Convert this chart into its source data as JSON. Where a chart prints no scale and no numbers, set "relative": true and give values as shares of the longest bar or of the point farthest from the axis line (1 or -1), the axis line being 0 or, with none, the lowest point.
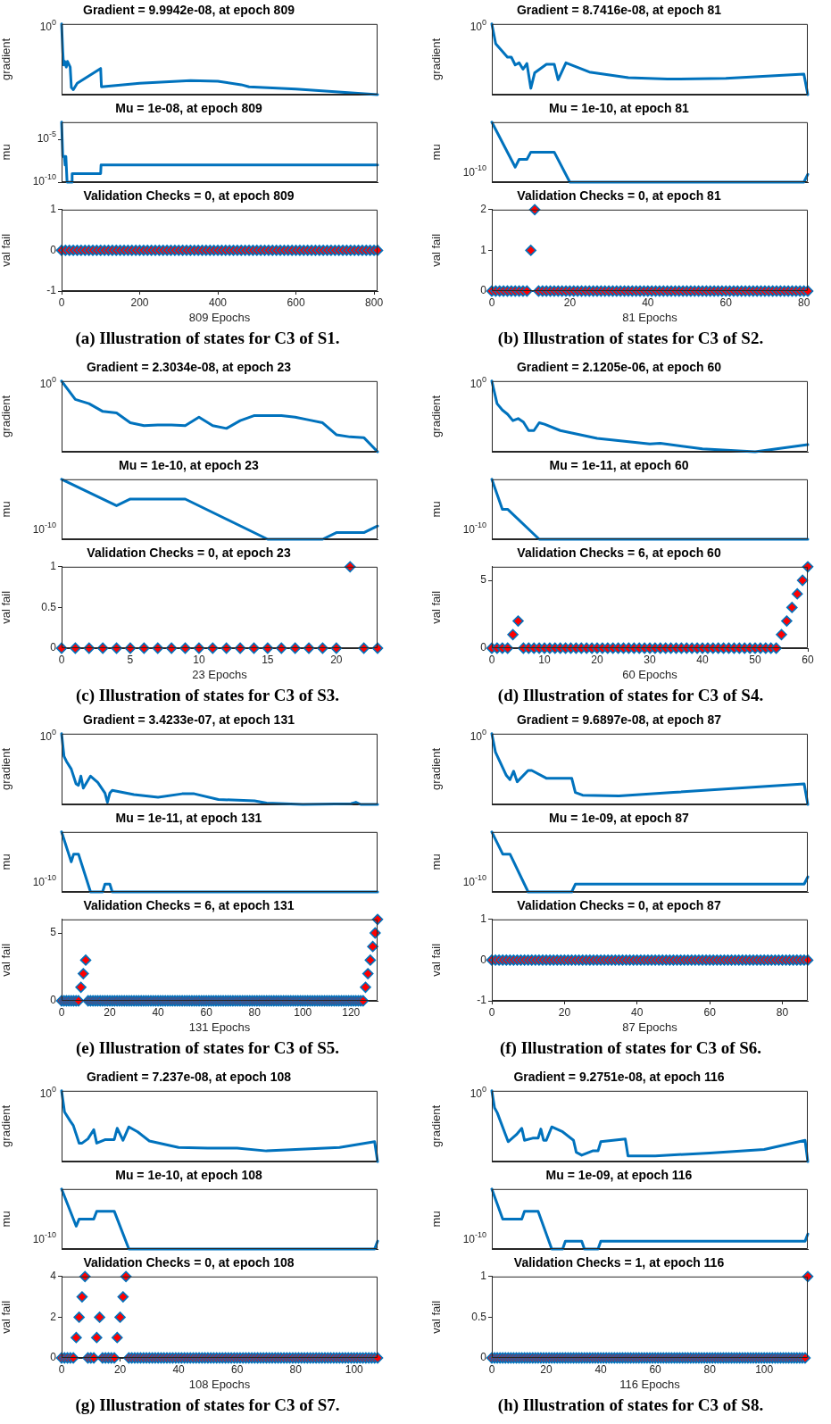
{
  "chart_data": [
    {
      "type": "line",
      "title": "Gradient = 9.9942e-08, at epoch 809",
      "ylabel": "gradient",
      "color": "#0072bd",
      "relative": true,
      "tick_labels": "y",
      "xlim": [
        0,
        809
      ],
      "xticks": [
        0,
        200,
        400,
        600,
        800
      ],
      "annotations": [
        "10$^{0}$"
      ],
      "x": [
        0,
        3,
        5,
        8,
        12,
        15,
        22,
        25,
        30,
        40,
        100,
        102,
        200,
        330,
        400,
        460,
        480,
        600,
        809
      ],
      "values": [
        1,
        0.61,
        0.42,
        0.47,
        0.39,
        0.47,
        0.39,
        0.1,
        0.07,
        0.16,
        0.37,
        0.11,
        0.16,
        0.2,
        0.19,
        0.14,
        0.11,
        0.08,
        0
      ]
    },
    {
      "type": "line",
      "title": "Mu = 1e-08, at epoch 809",
      "ylabel": "mu",
      "color": "#0072bd",
      "log": true,
      "tick_labels": "y",
      "xlim": [
        0,
        809
      ],
      "xticks": [
        0,
        200,
        400,
        600,
        800
      ],
      "ylim": [
        1e-10,
        0.001
      ],
      "yticks": [
        {
          "value": 1e-05,
          "label": "10$^{-5}$"
        },
        {
          "value": 1e-10,
          "label": "10$^{-10}$"
        }
      ],
      "x": [
        0,
        3,
        7,
        9,
        11,
        14,
        26,
        27,
        100,
        101,
        809
      ],
      "values": [
        0.001,
        1e-07,
        1e-07,
        1e-08,
        1e-07,
        1e-10,
        1e-10,
        1e-09,
        1e-09,
        1e-08,
        1e-08
      ]
    },
    {
      "type": "scatter",
      "title": "Validation Checks = 0, at epoch 809",
      "ylabel": "val fail",
      "xlabel": "809 Epochs",
      "color": "#0072bd",
      "marker": "diamond",
      "xlim": [
        0,
        809
      ],
      "xticks": [
        0,
        200,
        400,
        600,
        800
      ],
      "ylim": [
        -1,
        1
      ],
      "yticks": [
        -1,
        0,
        1
      ],
      "annotations": [
        "(a) Illustration of states for C3 of S1."
      ],
      "x": [
        0,
        10,
        20,
        30,
        40,
        50,
        60,
        70,
        80,
        90,
        100,
        110,
        120,
        130,
        140,
        150,
        160,
        170,
        180,
        190,
        200,
        210,
        220,
        230,
        240,
        250,
        260,
        270,
        280,
        290,
        300,
        310,
        320,
        330,
        340,
        350,
        360,
        370,
        380,
        390,
        400,
        410,
        420,
        430,
        440,
        450,
        460,
        470,
        480,
        490,
        500,
        510,
        520,
        530,
        540,
        550,
        560,
        570,
        580,
        590,
        600,
        610,
        620,
        630,
        640,
        650,
        660,
        670,
        680,
        690,
        700,
        710,
        720,
        730,
        740,
        750,
        760,
        770,
        780,
        790,
        800,
        809
      ],
      "values": [
        0,
        0,
        0,
        0,
        0,
        0,
        0,
        0,
        0,
        0,
        0,
        0,
        0,
        0,
        0,
        0,
        0,
        0,
        0,
        0,
        0,
        0,
        0,
        0,
        0,
        0,
        0,
        0,
        0,
        0,
        0,
        0,
        0,
        0,
        0,
        0,
        0,
        0,
        0,
        0,
        0,
        0,
        0,
        0,
        0,
        0,
        0,
        0,
        0,
        0,
        0,
        0,
        0,
        0,
        0,
        0,
        0,
        0,
        0,
        0,
        0,
        0,
        0,
        0,
        0,
        0,
        0,
        0,
        0,
        0,
        0,
        0,
        0,
        0,
        0,
        0,
        0,
        0,
        0,
        0,
        0,
        0
      ]
    },
    {
      "type": "line",
      "title": "Gradient = 8.7416e-08, at epoch 81",
      "ylabel": "gradient",
      "color": "#0072bd",
      "relative": true,
      "tick_labels": "y",
      "xlim": [
        0,
        81
      ],
      "xticks": [
        0,
        20,
        40,
        60,
        80
      ],
      "annotations": [
        "10$^{0}$"
      ],
      "x": [
        0,
        1,
        4,
        5,
        6,
        7,
        8,
        9,
        10,
        11,
        14,
        16,
        17,
        19,
        25,
        35,
        45,
        60,
        80,
        81
      ],
      "values": [
        1,
        0.72,
        0.53,
        0.53,
        0.42,
        0.45,
        0.36,
        0.44,
        0.09,
        0.31,
        0.43,
        0.43,
        0.21,
        0.45,
        0.32,
        0.24,
        0.22,
        0.23,
        0.29,
        0
      ]
    },
    {
      "type": "line",
      "title": "Mu = 1e-10, at epoch 81",
      "ylabel": "mu",
      "color": "#0072bd",
      "relative": true,
      "tick_labels": "y",
      "xlim": [
        0,
        81
      ],
      "xticks": [
        0,
        20,
        40,
        60,
        80
      ],
      "annotations": [
        "10$^{-10}$"
      ],
      "x": [
        0,
        6,
        7,
        9,
        10,
        16,
        20,
        80,
        81
      ],
      "values": [
        1,
        0.25,
        0.38,
        0.38,
        0.5,
        0.5,
        0,
        0,
        0.13
      ]
    },
    {
      "type": "scatter",
      "title": "Validation Checks = 0, at epoch 81",
      "ylabel": "val fail",
      "xlabel": "81 Epochs",
      "color": "#0072bd",
      "marker": "diamond",
      "xlim": [
        0,
        81
      ],
      "xticks": [
        0,
        20,
        40,
        60,
        80
      ],
      "ylim": [
        0,
        2
      ],
      "yticks": [
        0,
        1,
        2
      ],
      "annotations": [
        "(b) Illustration of states for C3 of S2."
      ],
      "x": [
        0,
        1,
        2,
        3,
        4,
        5,
        6,
        7,
        8,
        9,
        10,
        11,
        12,
        13,
        14,
        15,
        16,
        17,
        18,
        19,
        20,
        21,
        22,
        23,
        24,
        25,
        26,
        27,
        28,
        29,
        30,
        31,
        32,
        33,
        34,
        35,
        36,
        37,
        38,
        39,
        40,
        41,
        42,
        43,
        44,
        45,
        46,
        47,
        48,
        49,
        50,
        51,
        52,
        53,
        54,
        55,
        56,
        57,
        58,
        59,
        60,
        61,
        62,
        63,
        64,
        65,
        66,
        67,
        68,
        69,
        70,
        71,
        72,
        73,
        74,
        75,
        76,
        77,
        78,
        79,
        80,
        81
      ],
      "values": [
        0,
        0,
        0,
        0,
        0,
        0,
        0,
        0,
        0,
        0,
        1,
        2,
        0,
        0,
        0,
        0,
        0,
        0,
        0,
        0,
        0,
        0,
        0,
        0,
        0,
        0,
        0,
        0,
        0,
        0,
        0,
        0,
        0,
        0,
        0,
        0,
        0,
        0,
        0,
        0,
        0,
        0,
        0,
        0,
        0,
        0,
        0,
        0,
        0,
        0,
        0,
        0,
        0,
        0,
        0,
        0,
        0,
        0,
        0,
        0,
        0,
        0,
        0,
        0,
        0,
        0,
        0,
        0,
        0,
        0,
        0,
        0,
        0,
        0,
        0,
        0,
        0,
        0,
        0,
        0,
        0,
        0
      ]
    },
    {
      "type": "line",
      "title": "Gradient = 2.3034e-08, at epoch 23",
      "ylabel": "gradient",
      "color": "#0072bd",
      "relative": true,
      "tick_labels": "y",
      "xlim": [
        0,
        23
      ],
      "xticks": [
        0,
        5,
        10,
        15,
        20
      ],
      "annotations": [
        "10$^{0}$"
      ],
      "x": [
        0,
        1,
        2,
        3,
        4,
        5,
        6,
        7,
        8,
        9,
        10,
        11,
        12,
        13,
        14,
        15,
        16,
        17,
        18,
        19,
        20,
        21,
        22,
        23
      ],
      "values": [
        1,
        0.74,
        0.68,
        0.57,
        0.55,
        0.41,
        0.37,
        0.38,
        0.38,
        0.37,
        0.49,
        0.37,
        0.33,
        0.44,
        0.51,
        0.51,
        0.51,
        0.49,
        0.45,
        0.41,
        0.24,
        0.21,
        0.2,
        0
      ]
    },
    {
      "type": "line",
      "title": "Mu = 1e-10, at epoch 23",
      "ylabel": "mu",
      "color": "#0072bd",
      "relative": true,
      "tick_labels": "y",
      "xlim": [
        0,
        23
      ],
      "xticks": [
        0,
        5,
        10,
        15,
        20
      ],
      "annotations": [
        "10$^{-10}$"
      ],
      "x": [
        0,
        4,
        5,
        9,
        15,
        19,
        20,
        22,
        23
      ],
      "values": [
        1,
        0.56,
        0.67,
        0.67,
        0,
        0,
        0.11,
        0.11,
        0.22
      ]
    },
    {
      "type": "scatter",
      "title": "Validation Checks = 0, at epoch 23",
      "ylabel": "val fail",
      "xlabel": "23 Epochs",
      "color": "#0072bd",
      "marker": "diamond",
      "xlim": [
        0,
        23
      ],
      "xticks": [
        0,
        5,
        10,
        15,
        20
      ],
      "ylim": [
        0,
        1
      ],
      "yticks": [
        0,
        0.5,
        1
      ],
      "annotations": [
        "(c) Illustration of states for C3 of S3."
      ],
      "x": [
        0,
        1,
        2,
        3,
        4,
        5,
        6,
        7,
        8,
        9,
        10,
        11,
        12,
        13,
        14,
        15,
        16,
        17,
        18,
        19,
        20,
        21,
        22,
        23
      ],
      "values": [
        0,
        0,
        0,
        0,
        0,
        0,
        0,
        0,
        0,
        0,
        0,
        0,
        0,
        0,
        0,
        0,
        0,
        0,
        0,
        0,
        0,
        1,
        0,
        0
      ]
    },
    {
      "type": "line",
      "title": "Gradient = 2.1205e-06, at epoch 60",
      "ylabel": "gradient",
      "color": "#0072bd",
      "relative": true,
      "tick_labels": "y",
      "xlim": [
        0,
        60
      ],
      "xticks": [
        0,
        10,
        20,
        30,
        40,
        50,
        60
      ],
      "annotations": [
        "10$^{0}$"
      ],
      "x": [
        0,
        1,
        2,
        3,
        4,
        5,
        6,
        7,
        8,
        9,
        10,
        13,
        20,
        30,
        32,
        40,
        50,
        60
      ],
      "values": [
        1,
        0.68,
        0.59,
        0.53,
        0.44,
        0.47,
        0.42,
        0.3,
        0.3,
        0.41,
        0.39,
        0.3,
        0.19,
        0.11,
        0.12,
        0.04,
        0,
        0.1
      ]
    },
    {
      "type": "line",
      "title": "Mu = 1e-11, at epoch 60",
      "ylabel": "mu",
      "color": "#0072bd",
      "relative": true,
      "tick_labels": "y",
      "xlim": [
        0,
        60
      ],
      "xticks": [
        0,
        10,
        20,
        30,
        40,
        50,
        60
      ],
      "annotations": [
        "10$^{-10}$"
      ],
      "x": [
        0,
        2,
        3,
        9,
        60
      ],
      "values": [
        1,
        0.5,
        0.5,
        0,
        0
      ]
    },
    {
      "type": "scatter",
      "title": "Validation Checks = 6, at epoch 60",
      "ylabel": "val fail",
      "xlabel": "60 Epochs",
      "color": "#0072bd",
      "marker": "diamond",
      "xlim": [
        0,
        60
      ],
      "xticks": [
        0,
        10,
        20,
        30,
        40,
        50,
        60
      ],
      "ylim": [
        0,
        6
      ],
      "yticks": [
        0,
        5
      ],
      "annotations": [
        "(d) Illustration of states for C3 of S4."
      ],
      "x": [
        0,
        1,
        2,
        3,
        4,
        5,
        6,
        7,
        8,
        9,
        10,
        11,
        12,
        13,
        14,
        15,
        16,
        17,
        18,
        19,
        20,
        21,
        22,
        23,
        24,
        25,
        26,
        27,
        28,
        29,
        30,
        31,
        32,
        33,
        34,
        35,
        36,
        37,
        38,
        39,
        40,
        41,
        42,
        43,
        44,
        45,
        46,
        47,
        48,
        49,
        50,
        51,
        52,
        53,
        54,
        55,
        56,
        57,
        58,
        59,
        60
      ],
      "values": [
        0,
        0,
        0,
        0,
        1,
        2,
        0,
        0,
        0,
        0,
        0,
        0,
        0,
        0,
        0,
        0,
        0,
        0,
        0,
        0,
        0,
        0,
        0,
        0,
        0,
        0,
        0,
        0,
        0,
        0,
        0,
        0,
        0,
        0,
        0,
        0,
        0,
        0,
        0,
        0,
        0,
        0,
        0,
        0,
        0,
        0,
        0,
        0,
        0,
        0,
        0,
        0,
        0,
        0,
        0,
        1,
        2,
        3,
        4,
        5,
        6
      ]
    },
    {
      "type": "line",
      "title": "Gradient = 3.4233e-07, at epoch 131",
      "ylabel": "gradient",
      "color": "#0072bd",
      "relative": true,
      "tick_labels": "y",
      "xlim": [
        0,
        131
      ],
      "xticks": [
        0,
        20,
        40,
        60,
        80,
        100,
        120
      ],
      "annotations": [
        "10$^{0}$"
      ],
      "x": [
        0,
        1,
        2,
        4,
        6,
        7,
        8,
        9,
        12,
        15,
        18,
        19,
        20,
        21,
        30,
        40,
        50,
        55,
        65,
        80,
        85,
        100,
        120,
        122,
        124,
        131
      ],
      "values": [
        1,
        0.68,
        0.61,
        0.5,
        0.29,
        0.27,
        0.4,
        0.23,
        0.4,
        0.31,
        0.16,
        0.03,
        0.16,
        0.2,
        0.14,
        0.1,
        0.15,
        0.15,
        0.07,
        0.05,
        0.02,
        0,
        0.01,
        0.03,
        0,
        0
      ]
    },
    {
      "type": "line",
      "title": "Mu = 1e-11, at epoch 131",
      "ylabel": "mu",
      "color": "#0072bd",
      "relative": true,
      "tick_labels": "y",
      "xlim": [
        0,
        131
      ],
      "xticks": [
        0,
        20,
        40,
        60,
        80,
        100,
        120
      ],
      "annotations": [
        "10$^{-10}$"
      ],
      "x": [
        0,
        4,
        5,
        7,
        12,
        17,
        18,
        20,
        21,
        131
      ],
      "values": [
        1,
        0.5,
        0.63,
        0.63,
        0,
        0,
        0.13,
        0.13,
        0,
        0
      ]
    },
    {
      "type": "scatter",
      "title": "Validation Checks = 6, at epoch 131",
      "ylabel": "val fail",
      "xlabel": "131 Epochs",
      "color": "#0072bd",
      "marker": "diamond",
      "xlim": [
        0,
        131
      ],
      "xticks": [
        0,
        20,
        40,
        60,
        80,
        100,
        120
      ],
      "ylim": [
        0,
        6
      ],
      "yticks": [
        0,
        5
      ],
      "annotations": [
        "(e) Illustration of states for C3 of S5."
      ],
      "x": [
        0,
        1,
        2,
        3,
        4,
        5,
        6,
        7,
        8,
        9,
        10,
        11,
        12,
        13,
        14,
        15,
        16,
        17,
        18,
        19,
        20,
        21,
        22,
        23,
        24,
        25,
        26,
        27,
        28,
        29,
        30,
        31,
        32,
        33,
        34,
        35,
        36,
        37,
        38,
        39,
        40,
        41,
        42,
        43,
        44,
        45,
        46,
        47,
        48,
        49,
        50,
        51,
        52,
        53,
        54,
        55,
        56,
        57,
        58,
        59,
        60,
        61,
        62,
        63,
        64,
        65,
        66,
        67,
        68,
        69,
        70,
        71,
        72,
        73,
        74,
        75,
        76,
        77,
        78,
        79,
        80,
        81,
        82,
        83,
        84,
        85,
        86,
        87,
        88,
        89,
        90,
        91,
        92,
        93,
        94,
        95,
        96,
        97,
        98,
        99,
        100,
        101,
        102,
        103,
        104,
        105,
        106,
        107,
        108,
        109,
        110,
        111,
        112,
        113,
        114,
        115,
        116,
        117,
        118,
        119,
        120,
        121,
        122,
        123,
        124,
        125,
        126,
        127,
        128,
        129,
        130,
        131
      ],
      "values": [
        0,
        0,
        0,
        0,
        0,
        0,
        0,
        0,
        1,
        2,
        3,
        0,
        0,
        0,
        0,
        0,
        0,
        0,
        0,
        0,
        0,
        0,
        0,
        0,
        0,
        0,
        0,
        0,
        0,
        0,
        0,
        0,
        0,
        0,
        0,
        0,
        0,
        0,
        0,
        0,
        0,
        0,
        0,
        0,
        0,
        0,
        0,
        0,
        0,
        0,
        0,
        0,
        0,
        0,
        0,
        0,
        0,
        0,
        0,
        0,
        0,
        0,
        0,
        0,
        0,
        0,
        0,
        0,
        0,
        0,
        0,
        0,
        0,
        0,
        0,
        0,
        0,
        0,
        0,
        0,
        0,
        0,
        0,
        0,
        0,
        0,
        0,
        0,
        0,
        0,
        0,
        0,
        0,
        0,
        0,
        0,
        0,
        0,
        0,
        0,
        0,
        0,
        0,
        0,
        0,
        0,
        0,
        0,
        0,
        0,
        0,
        0,
        0,
        0,
        0,
        0,
        0,
        0,
        0,
        0,
        0,
        0,
        0,
        0,
        0,
        0,
        1,
        2,
        3,
        4,
        5,
        6
      ]
    },
    {
      "type": "line",
      "title": "Gradient = 9.6897e-08, at epoch 87",
      "ylabel": "gradient",
      "color": "#0072bd",
      "relative": true,
      "tick_labels": "y",
      "xlim": [
        0,
        87
      ],
      "xticks": [
        0,
        20,
        40,
        60,
        80
      ],
      "annotations": [
        "10$^{0}$"
      ],
      "x": [
        0,
        1,
        2,
        3,
        4,
        5,
        6,
        7,
        10,
        11,
        15,
        22,
        23,
        25,
        35,
        50,
        86,
        87
      ],
      "values": [
        1,
        0.74,
        0.63,
        0.52,
        0.41,
        0.35,
        0.47,
        0.32,
        0.48,
        0.48,
        0.37,
        0.37,
        0.17,
        0.13,
        0.12,
        0.17,
        0.29,
        0
      ]
    },
    {
      "type": "line",
      "title": "Mu = 1e-09, at epoch 87",
      "ylabel": "mu",
      "color": "#0072bd",
      "relative": true,
      "tick_labels": "y",
      "xlim": [
        0,
        87
      ],
      "xticks": [
        0,
        20,
        40,
        60,
        80
      ],
      "annotations": [
        "10$^{-10}$"
      ],
      "x": [
        0,
        3,
        5,
        10,
        22,
        23,
        86,
        87
      ],
      "values": [
        1,
        0.63,
        0.63,
        0,
        0,
        0.13,
        0.13,
        0.25
      ]
    },
    {
      "type": "scatter",
      "title": "Validation Checks = 0, at epoch 87",
      "ylabel": "val fail",
      "xlabel": "87 Epochs",
      "color": "#0072bd",
      "marker": "diamond",
      "xlim": [
        0,
        87
      ],
      "xticks": [
        0,
        20,
        40,
        60,
        80
      ],
      "ylim": [
        -1,
        1
      ],
      "yticks": [
        -1,
        0,
        1
      ],
      "annotations": [
        "(f) Illustration of states for C3 of S6."
      ],
      "x": [
        0,
        1,
        2,
        3,
        4,
        5,
        6,
        7,
        8,
        9,
        10,
        11,
        12,
        13,
        14,
        15,
        16,
        17,
        18,
        19,
        20,
        21,
        22,
        23,
        24,
        25,
        26,
        27,
        28,
        29,
        30,
        31,
        32,
        33,
        34,
        35,
        36,
        37,
        38,
        39,
        40,
        41,
        42,
        43,
        44,
        45,
        46,
        47,
        48,
        49,
        50,
        51,
        52,
        53,
        54,
        55,
        56,
        57,
        58,
        59,
        60,
        61,
        62,
        63,
        64,
        65,
        66,
        67,
        68,
        69,
        70,
        71,
        72,
        73,
        74,
        75,
        76,
        77,
        78,
        79,
        80,
        81,
        82,
        83,
        84,
        85,
        86,
        87
      ],
      "values": [
        0,
        0,
        0,
        0,
        0,
        0,
        0,
        0,
        0,
        0,
        0,
        0,
        0,
        0,
        0,
        0,
        0,
        0,
        0,
        0,
        0,
        0,
        0,
        0,
        0,
        0,
        0,
        0,
        0,
        0,
        0,
        0,
        0,
        0,
        0,
        0,
        0,
        0,
        0,
        0,
        0,
        0,
        0,
        0,
        0,
        0,
        0,
        0,
        0,
        0,
        0,
        0,
        0,
        0,
        0,
        0,
        0,
        0,
        0,
        0,
        0,
        0,
        0,
        0,
        0,
        0,
        0,
        0,
        0,
        0,
        0,
        0,
        0,
        0,
        0,
        0,
        0,
        0,
        0,
        0,
        0,
        0,
        0,
        0,
        0,
        0,
        0,
        0
      ]
    },
    {
      "type": "line",
      "title": "Gradient = 7.237e-08, at epoch 108",
      "ylabel": "gradient",
      "color": "#0072bd",
      "relative": true,
      "tick_labels": "y",
      "xlim": [
        0,
        108
      ],
      "xticks": [
        0,
        20,
        40,
        60,
        80,
        100
      ],
      "annotations": [
        "10$^{0}$"
      ],
      "x": [
        0,
        1,
        3,
        4,
        6,
        7,
        9,
        11,
        12,
        15,
        18,
        19,
        21,
        23,
        26,
        30,
        40,
        50,
        60,
        70,
        80,
        95,
        107,
        108
      ],
      "values": [
        1,
        0.7,
        0.57,
        0.51,
        0.26,
        0.26,
        0.32,
        0.45,
        0.26,
        0.31,
        0.31,
        0.47,
        0.3,
        0.49,
        0.42,
        0.29,
        0.2,
        0.19,
        0.19,
        0.15,
        0.17,
        0.2,
        0.28,
        0
      ]
    },
    {
      "type": "line",
      "title": "Mu = 1e-10, at epoch 108",
      "ylabel": "mu",
      "color": "#0072bd",
      "relative": true,
      "tick_labels": "y",
      "xlim": [
        0,
        108
      ],
      "xticks": [
        0,
        20,
        40,
        60,
        80,
        100
      ],
      "annotations": [
        "10$^{-10}$"
      ],
      "x": [
        0,
        5,
        6,
        11,
        12,
        18,
        23,
        107,
        108
      ],
      "values": [
        1,
        0.38,
        0.5,
        0.5,
        0.63,
        0.63,
        0,
        0,
        0.13
      ]
    },
    {
      "type": "scatter",
      "title": "Validation Checks = 0, at epoch 108",
      "ylabel": "val fail",
      "xlabel": "108 Epochs",
      "color": "#0072bd",
      "marker": "diamond",
      "xlim": [
        0,
        108
      ],
      "xticks": [
        0,
        20,
        40,
        60,
        80,
        100
      ],
      "ylim": [
        0,
        4
      ],
      "yticks": [
        0,
        2,
        4
      ],
      "annotations": [
        "(g) Illustration of states for C3 of S7."
      ],
      "x": [
        0,
        1,
        2,
        3,
        4,
        5,
        6,
        7,
        8,
        9,
        10,
        11,
        12,
        13,
        14,
        15,
        16,
        17,
        18,
        19,
        20,
        21,
        22,
        23,
        24,
        25,
        26,
        27,
        28,
        29,
        30,
        31,
        32,
        33,
        34,
        35,
        36,
        37,
        38,
        39,
        40,
        41,
        42,
        43,
        44,
        45,
        46,
        47,
        48,
        49,
        50,
        51,
        52,
        53,
        54,
        55,
        56,
        57,
        58,
        59,
        60,
        61,
        62,
        63,
        64,
        65,
        66,
        67,
        68,
        69,
        70,
        71,
        72,
        73,
        74,
        75,
        76,
        77,
        78,
        79,
        80,
        81,
        82,
        83,
        84,
        85,
        86,
        87,
        88,
        89,
        90,
        91,
        92,
        93,
        94,
        95,
        96,
        97,
        98,
        99,
        100,
        101,
        102,
        103,
        104,
        105,
        106,
        107,
        108
      ],
      "values": [
        0,
        0,
        0,
        0,
        0,
        1,
        2,
        3,
        4,
        0,
        0,
        0,
        1,
        2,
        0,
        0,
        0,
        0,
        0,
        1,
        2,
        3,
        4,
        0,
        0,
        0,
        0,
        0,
        0,
        0,
        0,
        0,
        0,
        0,
        0,
        0,
        0,
        0,
        0,
        0,
        0,
        0,
        0,
        0,
        0,
        0,
        0,
        0,
        0,
        0,
        0,
        0,
        0,
        0,
        0,
        0,
        0,
        0,
        0,
        0,
        0,
        0,
        0,
        0,
        0,
        0,
        0,
        0,
        0,
        0,
        0,
        0,
        0,
        0,
        0,
        0,
        0,
        0,
        0,
        0,
        0,
        0,
        0,
        0,
        0,
        0,
        0,
        0,
        0,
        0,
        0,
        0,
        0,
        0,
        0,
        0,
        0,
        0,
        0,
        0,
        0,
        0,
        0,
        0,
        0,
        0,
        0,
        0,
        0
      ]
    },
    {
      "type": "line",
      "title": "Gradient = 9.2751e-08, at epoch 116",
      "ylabel": "gradient",
      "color": "#0072bd",
      "relative": true,
      "tick_labels": "y",
      "xlim": [
        0,
        116
      ],
      "xticks": [
        0,
        20,
        40,
        60,
        80,
        100
      ],
      "annotations": [
        "10$^{0}$"
      ],
      "x": [
        0,
        1,
        2,
        6,
        9,
        11,
        12,
        15,
        17,
        18,
        19,
        20,
        22,
        26,
        30,
        31,
        33,
        37,
        39,
        40,
        49,
        50,
        60,
        80,
        100,
        115,
        116
      ],
      "values": [
        1,
        0.76,
        0.69,
        0.28,
        0.38,
        0.47,
        0.3,
        0.33,
        0.33,
        0.46,
        0.3,
        0.3,
        0.49,
        0.42,
        0.3,
        0.13,
        0.09,
        0.15,
        0.15,
        0.28,
        0.32,
        0.08,
        0.08,
        0.12,
        0.17,
        0.3,
        0
      ]
    },
    {
      "type": "line",
      "title": "Mu = 1e-09, at epoch 116",
      "ylabel": "mu",
      "color": "#0072bd",
      "relative": true,
      "tick_labels": "y",
      "xlim": [
        0,
        116
      ],
      "xticks": [
        0,
        20,
        40,
        60,
        80,
        100
      ],
      "annotations": [
        "10$^{-10}$"
      ],
      "x": [
        0,
        4,
        11,
        12,
        17,
        22,
        26,
        27,
        33,
        34,
        39,
        40,
        115,
        116
      ],
      "values": [
        1,
        0.5,
        0.5,
        0.63,
        0.63,
        0,
        0,
        0.13,
        0.13,
        0,
        0,
        0.13,
        0.13,
        0.25
      ]
    },
    {
      "type": "scatter",
      "title": "Validation Checks = 1, at epoch 116",
      "ylabel": "val fail",
      "xlabel": "116 Epochs",
      "color": "#0072bd",
      "marker": "diamond",
      "xlim": [
        0,
        116
      ],
      "xticks": [
        0,
        20,
        40,
        60,
        80,
        100
      ],
      "ylim": [
        0,
        1
      ],
      "yticks": [
        0,
        0.5,
        1
      ],
      "annotations": [
        "(h) Illustration of states for C3 of S8."
      ],
      "x": [
        0,
        1,
        2,
        3,
        4,
        5,
        6,
        7,
        8,
        9,
        10,
        11,
        12,
        13,
        14,
        15,
        16,
        17,
        18,
        19,
        20,
        21,
        22,
        23,
        24,
        25,
        26,
        27,
        28,
        29,
        30,
        31,
        32,
        33,
        34,
        35,
        36,
        37,
        38,
        39,
        40,
        41,
        42,
        43,
        44,
        45,
        46,
        47,
        48,
        49,
        50,
        51,
        52,
        53,
        54,
        55,
        56,
        57,
        58,
        59,
        60,
        61,
        62,
        63,
        64,
        65,
        66,
        67,
        68,
        69,
        70,
        71,
        72,
        73,
        74,
        75,
        76,
        77,
        78,
        79,
        80,
        81,
        82,
        83,
        84,
        85,
        86,
        87,
        88,
        89,
        90,
        91,
        92,
        93,
        94,
        95,
        96,
        97,
        98,
        99,
        100,
        101,
        102,
        103,
        104,
        105,
        106,
        107,
        108,
        109,
        110,
        111,
        112,
        113,
        114,
        115,
        116
      ],
      "values": [
        0,
        0,
        0,
        0,
        0,
        0,
        0,
        0,
        0,
        0,
        0,
        0,
        0,
        0,
        0,
        0,
        0,
        0,
        0,
        0,
        0,
        0,
        0,
        0,
        0,
        0,
        0,
        0,
        0,
        0,
        0,
        0,
        0,
        0,
        0,
        0,
        0,
        0,
        0,
        0,
        0,
        0,
        0,
        0,
        0,
        0,
        0,
        0,
        0,
        0,
        0,
        0,
        0,
        0,
        0,
        0,
        0,
        0,
        0,
        0,
        0,
        0,
        0,
        0,
        0,
        0,
        0,
        0,
        0,
        0,
        0,
        0,
        0,
        0,
        0,
        0,
        0,
        0,
        0,
        0,
        0,
        0,
        0,
        0,
        0,
        0,
        0,
        0,
        0,
        0,
        0,
        0,
        0,
        0,
        0,
        0,
        0,
        0,
        0,
        0,
        0,
        0,
        0,
        0,
        0,
        0,
        0,
        0,
        0,
        0,
        0,
        0,
        0,
        0,
        0,
        0,
        1
      ]
    }
  ]
}
